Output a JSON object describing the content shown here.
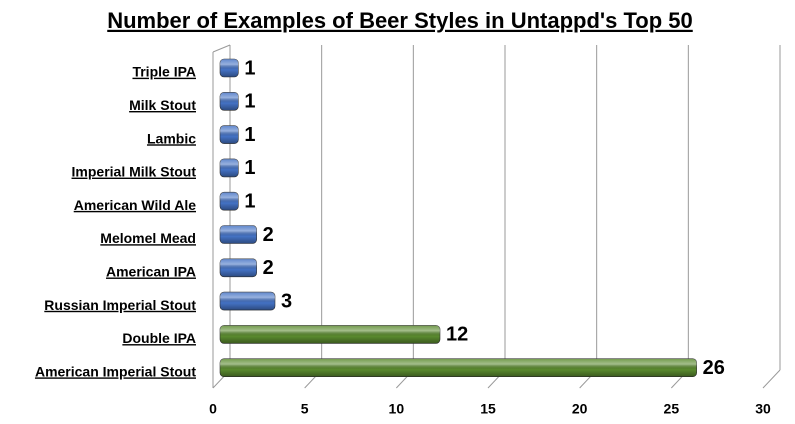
{
  "chart_data": {
    "type": "hbar",
    "title": "Number of Examples of Beer Styles in Untappd's Top 50",
    "categories": [
      "Triple IPA",
      "Milk Stout",
      "Lambic",
      "Imperial Milk Stout",
      "American Wild Ale",
      "Melomel Mead",
      "American IPA",
      "Russian Imperial Stout",
      "Double IPA",
      "American Imperial Stout"
    ],
    "values": [
      1,
      1,
      1,
      1,
      1,
      2,
      2,
      3,
      12,
      26
    ],
    "colors": [
      "#4472c4",
      "#4472c4",
      "#4472c4",
      "#4472c4",
      "#4472c4",
      "#4472c4",
      "#4472c4",
      "#4472c4",
      "#5a8a2e",
      "#5a8a2e"
    ],
    "xlim": [
      0,
      30
    ],
    "xticks": [
      0,
      5,
      10,
      15,
      20,
      25,
      30
    ],
    "grid": true
  }
}
